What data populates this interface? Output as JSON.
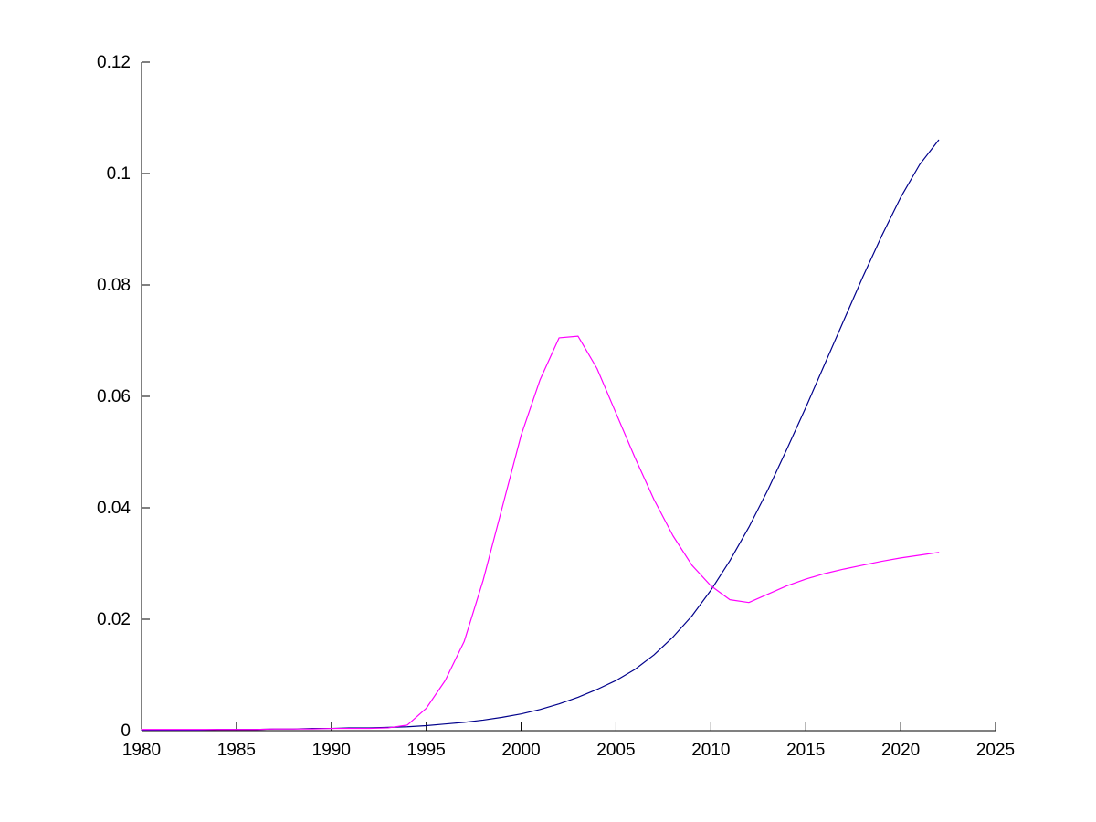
{
  "figure": {
    "background": "#ffffff"
  },
  "chart_data": {
    "type": "line",
    "title": "",
    "xlabel": "",
    "ylabel": "",
    "grid": false,
    "legend": null,
    "xlim": [
      1980,
      2025
    ],
    "ylim": [
      0,
      0.12
    ],
    "xticks": [
      1980,
      1985,
      1990,
      1995,
      2000,
      2005,
      2010,
      2015,
      2020,
      2025
    ],
    "xtick_labels": [
      "1980",
      "1985",
      "1990",
      "1995",
      "2000",
      "2005",
      "2010",
      "2015",
      "2020",
      "2025"
    ],
    "yticks": [
      0,
      0.02,
      0.04,
      0.06,
      0.08,
      0.1,
      0.12
    ],
    "ytick_labels": [
      "0",
      "0.02",
      "0.04",
      "0.06",
      "0.08",
      "0.1",
      "0.12"
    ],
    "axis_color": "#000000",
    "x": [
      1980,
      1981,
      1982,
      1983,
      1984,
      1985,
      1986,
      1987,
      1988,
      1989,
      1990,
      1991,
      1992,
      1993,
      1994,
      1995,
      1996,
      1997,
      1998,
      1999,
      2000,
      2001,
      2002,
      2003,
      2004,
      2005,
      2006,
      2007,
      2008,
      2009,
      2010,
      2011,
      2012,
      2013,
      2014,
      2015,
      2016,
      2017,
      2018,
      2019,
      2020,
      2021,
      2022
    ],
    "series": [
      {
        "name": "dark-blue-line",
        "color": "#00008B",
        "line_width": 1.2,
        "values": [
          0.0001,
          0.0001,
          0.0001,
          0.0001,
          0.0002,
          0.0002,
          0.0002,
          0.0003,
          0.0003,
          0.0004,
          0.0004,
          0.0005,
          0.0005,
          0.0006,
          0.0007,
          0.0009,
          0.0012,
          0.0015,
          0.0019,
          0.0024,
          0.003,
          0.0038,
          0.0048,
          0.006,
          0.0074,
          0.009,
          0.011,
          0.0136,
          0.0168,
          0.0206,
          0.0252,
          0.0305,
          0.0365,
          0.0432,
          0.0505,
          0.058,
          0.0658,
          0.0736,
          0.0814,
          0.0888,
          0.0957,
          0.1016,
          0.106
        ]
      },
      {
        "name": "magenta-line",
        "color": "#FF00FF",
        "line_width": 1.2,
        "values": [
          0.0002,
          0.0002,
          0.0002,
          0.0002,
          0.0002,
          0.0002,
          0.0002,
          0.0003,
          0.0003,
          0.0003,
          0.0004,
          0.0004,
          0.0004,
          0.0005,
          0.001,
          0.004,
          0.009,
          0.016,
          0.027,
          0.04,
          0.053,
          0.063,
          0.0705,
          0.0708,
          0.065,
          0.057,
          0.049,
          0.0415,
          0.035,
          0.0297,
          0.026,
          0.0235,
          0.023,
          0.0245,
          0.026,
          0.0272,
          0.0282,
          0.029,
          0.0297,
          0.0304,
          0.031,
          0.0315,
          0.032
        ]
      }
    ]
  }
}
